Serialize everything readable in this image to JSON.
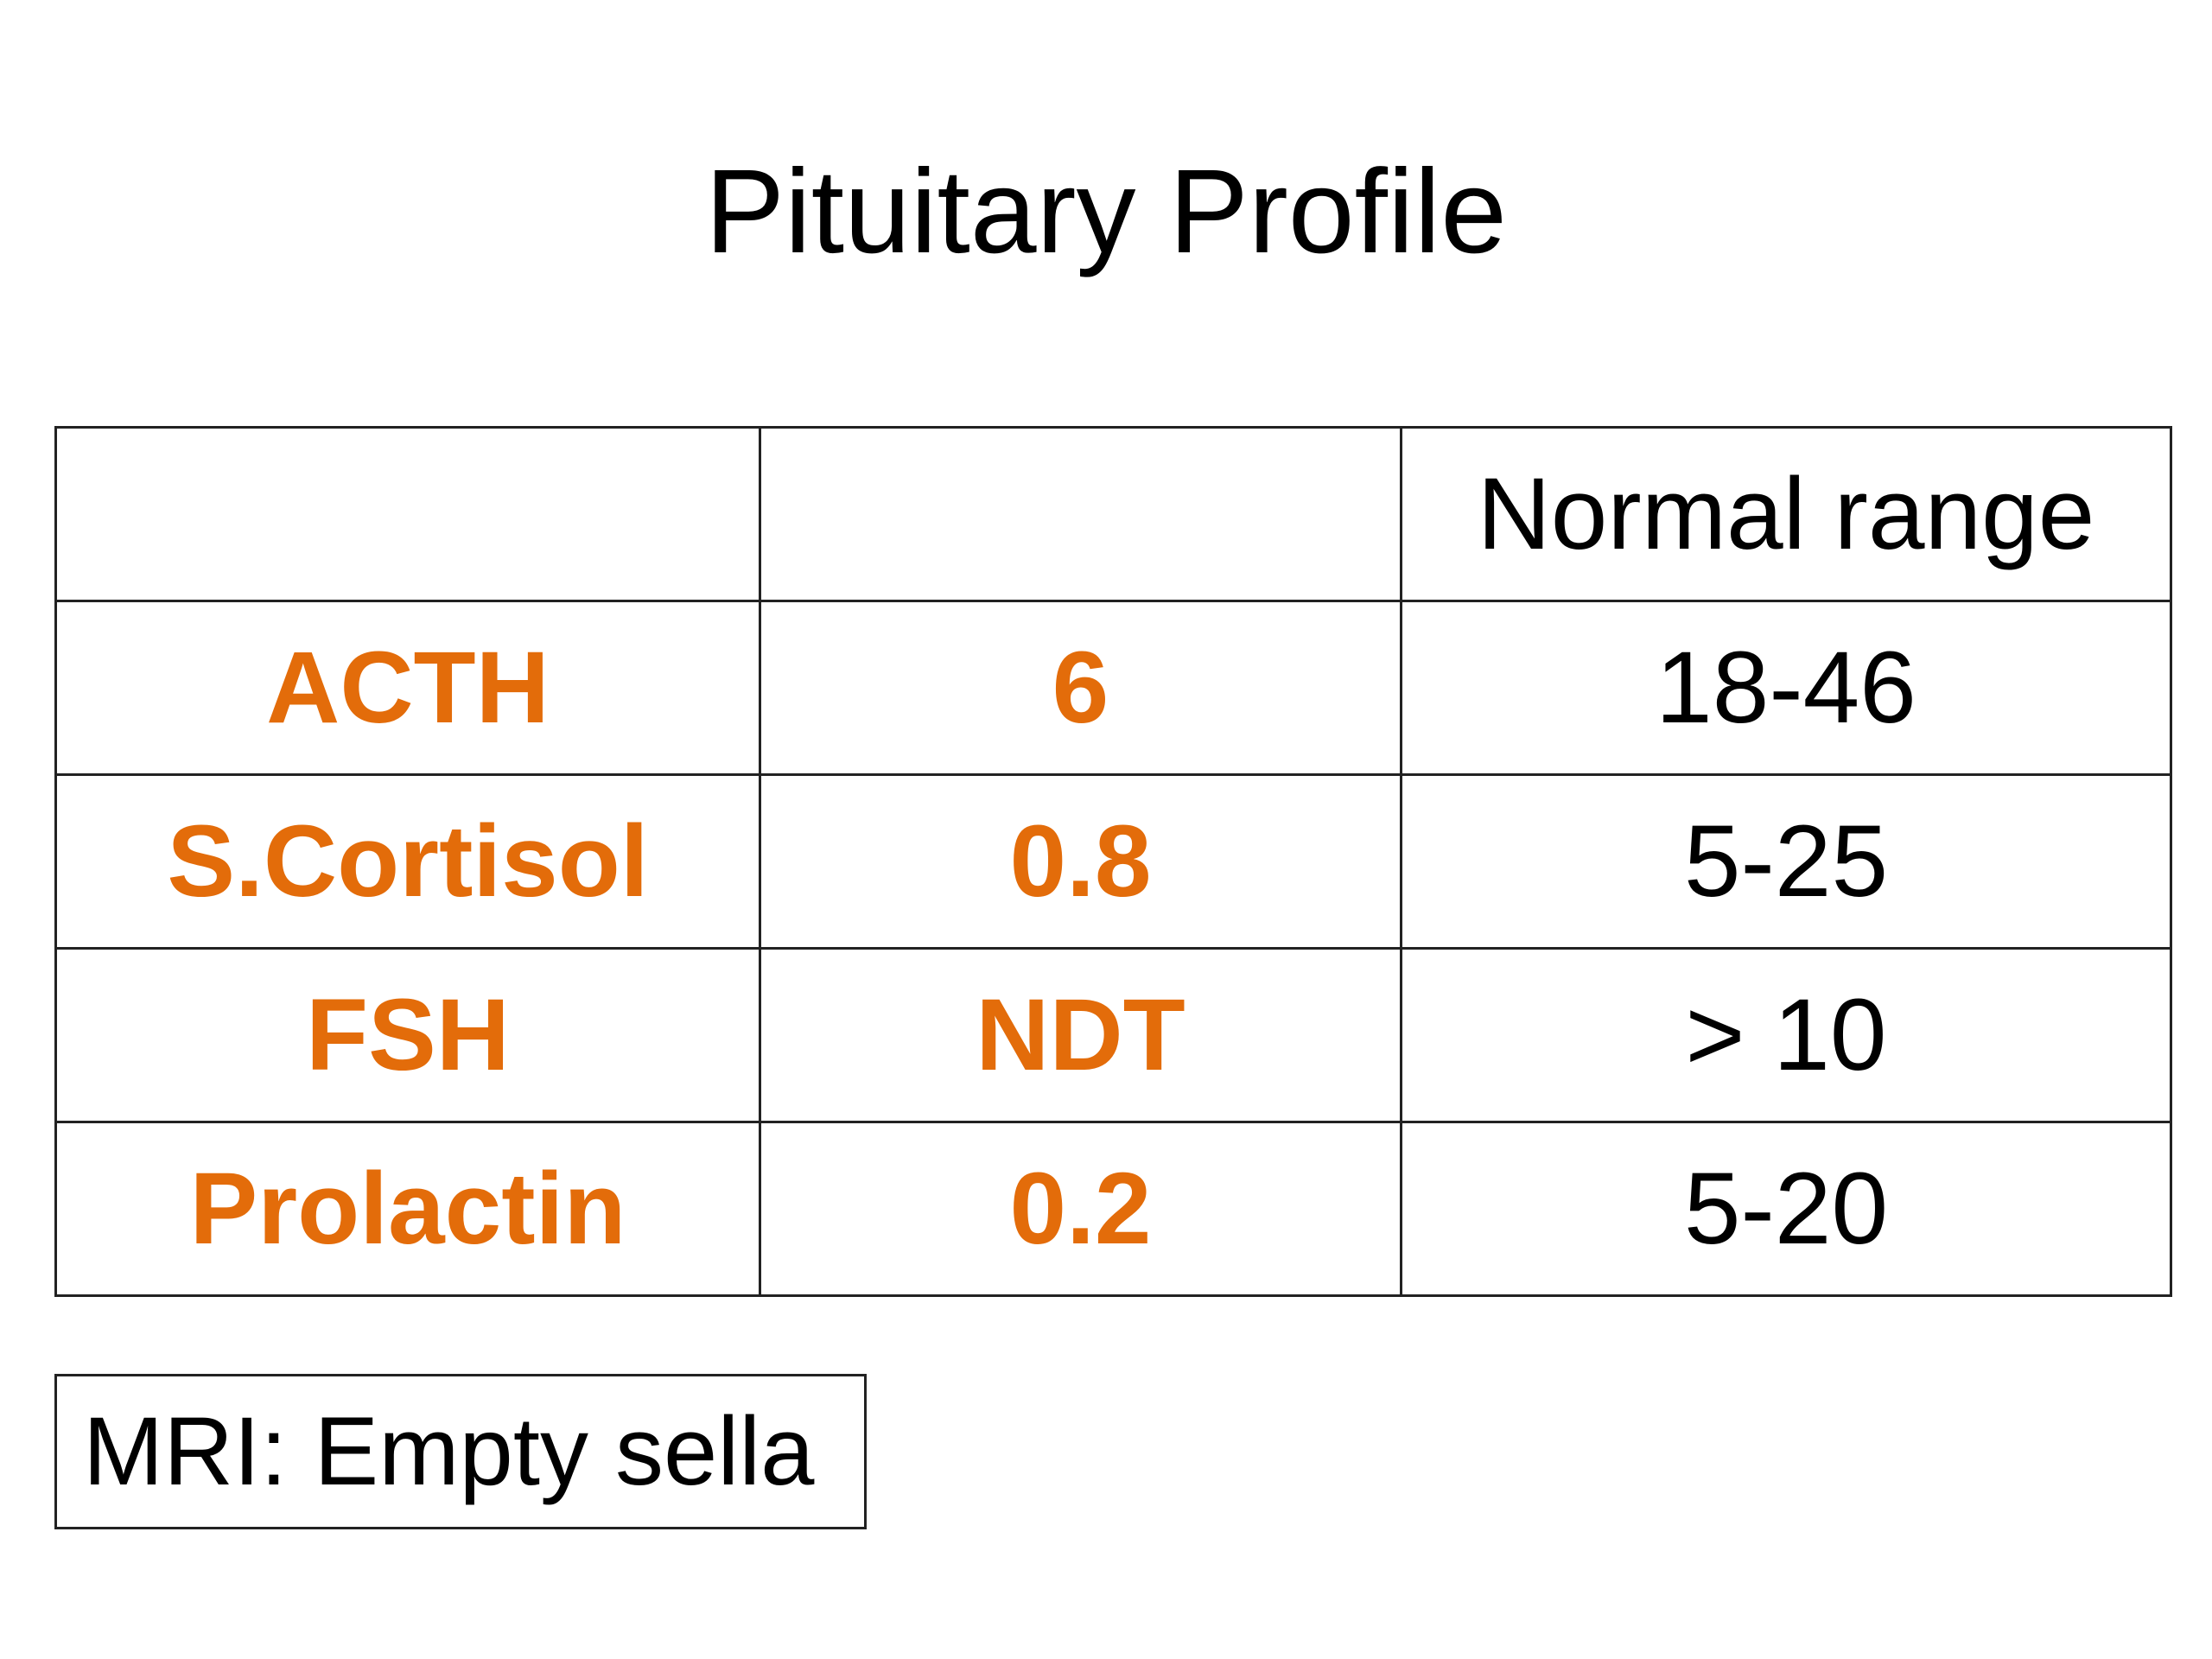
{
  "title": "Pituitary Profile",
  "table": {
    "header": [
      "",
      "",
      "Normal range"
    ],
    "rows": [
      {
        "hormone": "ACTH",
        "value": "6",
        "range": "18-46"
      },
      {
        "hormone": "S.Cortisol",
        "value": "0.8",
        "range": "5-25"
      },
      {
        "hormone": "FSH",
        "value": "NDT",
        "range": "> 10"
      },
      {
        "hormone": "Prolactin",
        "value": "0.2",
        "range": "5-20"
      }
    ]
  },
  "note": "MRI: Empty sella",
  "colors": {
    "accent": "#e36c0a",
    "text": "#000000",
    "border": "#222222"
  }
}
